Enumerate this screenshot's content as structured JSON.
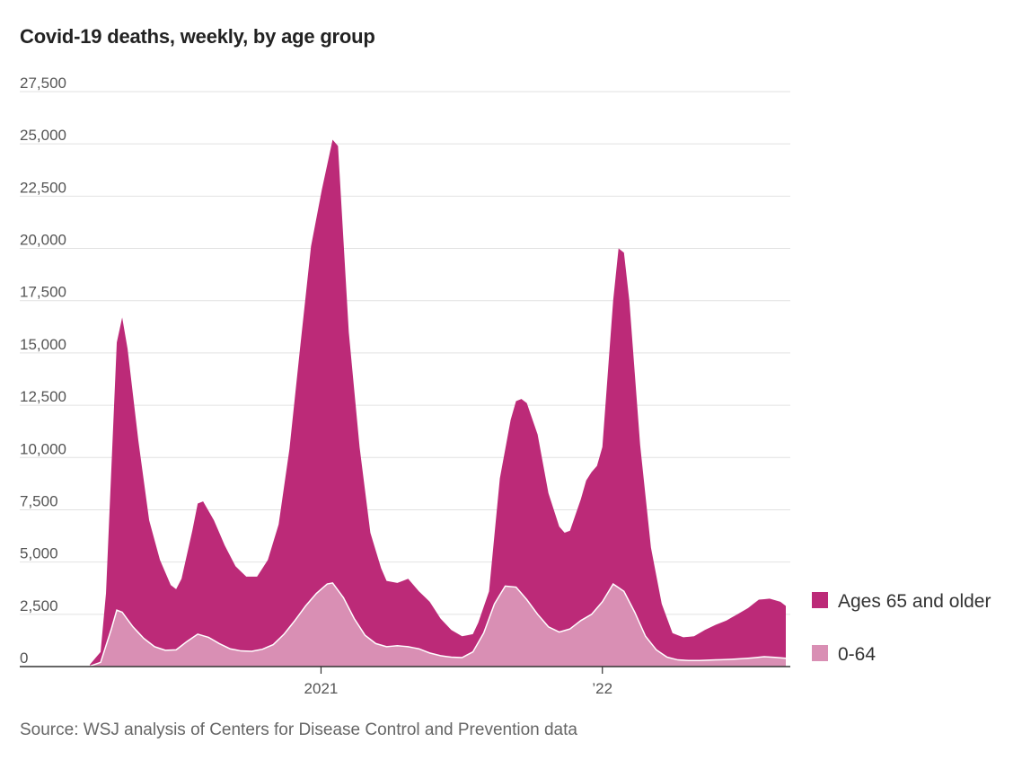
{
  "chart_title": "Covid-19 deaths, weekly, by age group",
  "source": "Source: WSJ analysis of Centers for Disease Control and Prevention data",
  "colors": {
    "older": "#bc2a78",
    "younger": "#d98fb4",
    "grid": "#e2e2e2",
    "axis": "#333333"
  },
  "chart_data": {
    "type": "area",
    "stacked": true,
    "x_unit": "week",
    "x_start": "2020-03-07",
    "x_end": "2022-08-27",
    "ylim": [
      0,
      27500
    ],
    "yticks": [
      "27,500",
      "25,000",
      "22,500",
      "20,000",
      "17,500",
      "15,000",
      "12,500",
      "10,000",
      "7,500",
      "5,000",
      "2,500",
      "0"
    ],
    "ytick_values": [
      27500,
      25000,
      22500,
      20000,
      17500,
      15000,
      12500,
      10000,
      7500,
      5000,
      2500,
      0
    ],
    "xticks": [
      {
        "label": "2021",
        "date": "2021-01-01"
      },
      {
        "label": "’22",
        "date": "2022-01-01"
      }
    ],
    "legend_position": "right",
    "series": [
      {
        "name": "0-64",
        "points": [
          [
            "2020-03-07",
            20
          ],
          [
            "2020-03-21",
            200
          ],
          [
            "2020-04-04",
            1800
          ],
          [
            "2020-04-11",
            2700
          ],
          [
            "2020-04-18",
            2600
          ],
          [
            "2020-05-02",
            1900
          ],
          [
            "2020-05-16",
            1350
          ],
          [
            "2020-05-30",
            950
          ],
          [
            "2020-06-13",
            780
          ],
          [
            "2020-06-27",
            800
          ],
          [
            "2020-07-11",
            1200
          ],
          [
            "2020-07-25",
            1550
          ],
          [
            "2020-08-08",
            1400
          ],
          [
            "2020-08-22",
            1100
          ],
          [
            "2020-09-05",
            850
          ],
          [
            "2020-09-19",
            750
          ],
          [
            "2020-10-03",
            730
          ],
          [
            "2020-10-17",
            830
          ],
          [
            "2020-10-31",
            1050
          ],
          [
            "2020-11-14",
            1550
          ],
          [
            "2020-11-28",
            2200
          ],
          [
            "2020-12-12",
            2900
          ],
          [
            "2020-12-26",
            3500
          ],
          [
            "2021-01-09",
            3950
          ],
          [
            "2021-01-16",
            4000
          ],
          [
            "2021-01-30",
            3300
          ],
          [
            "2021-02-13",
            2300
          ],
          [
            "2021-02-27",
            1500
          ],
          [
            "2021-03-13",
            1100
          ],
          [
            "2021-03-27",
            950
          ],
          [
            "2021-04-10",
            1000
          ],
          [
            "2021-04-24",
            950
          ],
          [
            "2021-05-08",
            850
          ],
          [
            "2021-05-22",
            650
          ],
          [
            "2021-06-05",
            520
          ],
          [
            "2021-06-19",
            450
          ],
          [
            "2021-07-03",
            430
          ],
          [
            "2021-07-17",
            700
          ],
          [
            "2021-07-31",
            1600
          ],
          [
            "2021-08-14",
            3000
          ],
          [
            "2021-08-28",
            3850
          ],
          [
            "2021-09-11",
            3800
          ],
          [
            "2021-09-25",
            3200
          ],
          [
            "2021-10-09",
            2500
          ],
          [
            "2021-10-23",
            1900
          ],
          [
            "2021-11-06",
            1650
          ],
          [
            "2021-11-20",
            1800
          ],
          [
            "2021-12-04",
            2200
          ],
          [
            "2021-12-18",
            2500
          ],
          [
            "2022-01-01",
            3100
          ],
          [
            "2022-01-15",
            3950
          ],
          [
            "2022-01-29",
            3600
          ],
          [
            "2022-02-12",
            2600
          ],
          [
            "2022-02-26",
            1450
          ],
          [
            "2022-03-12",
            800
          ],
          [
            "2022-03-26",
            450
          ],
          [
            "2022-04-09",
            320
          ],
          [
            "2022-04-23",
            290
          ],
          [
            "2022-05-07",
            290
          ],
          [
            "2022-05-21",
            310
          ],
          [
            "2022-06-04",
            330
          ],
          [
            "2022-06-18",
            350
          ],
          [
            "2022-07-02",
            380
          ],
          [
            "2022-07-16",
            420
          ],
          [
            "2022-07-30",
            470
          ],
          [
            "2022-08-13",
            440
          ],
          [
            "2022-08-27",
            400
          ]
        ]
      },
      {
        "name": "Ages 65 and older",
        "points": [
          [
            "2020-03-07",
            90
          ],
          [
            "2020-03-21",
            700
          ],
          [
            "2020-03-28",
            3500
          ],
          [
            "2020-04-04",
            9500
          ],
          [
            "2020-04-11",
            15500
          ],
          [
            "2020-04-18",
            16700
          ],
          [
            "2020-04-25",
            15200
          ],
          [
            "2020-05-09",
            10800
          ],
          [
            "2020-05-23",
            7000
          ],
          [
            "2020-06-06",
            5100
          ],
          [
            "2020-06-20",
            3900
          ],
          [
            "2020-06-27",
            3700
          ],
          [
            "2020-07-04",
            4200
          ],
          [
            "2020-07-18",
            6500
          ],
          [
            "2020-07-25",
            7800
          ],
          [
            "2020-08-01",
            7900
          ],
          [
            "2020-08-15",
            7000
          ],
          [
            "2020-08-29",
            5800
          ],
          [
            "2020-09-12",
            4800
          ],
          [
            "2020-09-26",
            4300
          ],
          [
            "2020-10-10",
            4300
          ],
          [
            "2020-10-24",
            5100
          ],
          [
            "2020-11-07",
            6800
          ],
          [
            "2020-11-21",
            10400
          ],
          [
            "2020-12-05",
            15300
          ],
          [
            "2020-12-19",
            20100
          ],
          [
            "2021-01-02",
            22800
          ],
          [
            "2021-01-09",
            24000
          ],
          [
            "2021-01-16",
            25200
          ],
          [
            "2021-01-23",
            24900
          ],
          [
            "2021-02-06",
            16000
          ],
          [
            "2021-02-20",
            10500
          ],
          [
            "2021-03-06",
            6400
          ],
          [
            "2021-03-20",
            4700
          ],
          [
            "2021-03-27",
            4100
          ],
          [
            "2021-04-10",
            4000
          ],
          [
            "2021-04-24",
            4200
          ],
          [
            "2021-05-08",
            3600
          ],
          [
            "2021-05-22",
            3100
          ],
          [
            "2021-06-05",
            2300
          ],
          [
            "2021-06-19",
            1750
          ],
          [
            "2021-07-03",
            1450
          ],
          [
            "2021-07-17",
            1550
          ],
          [
            "2021-07-24",
            2100
          ],
          [
            "2021-08-07",
            3600
          ],
          [
            "2021-08-21",
            9000
          ],
          [
            "2021-09-04",
            11800
          ],
          [
            "2021-09-11",
            12700
          ],
          [
            "2021-09-18",
            12800
          ],
          [
            "2021-09-25",
            12600
          ],
          [
            "2021-10-09",
            11100
          ],
          [
            "2021-10-23",
            8300
          ],
          [
            "2021-11-06",
            6700
          ],
          [
            "2021-11-13",
            6400
          ],
          [
            "2021-11-20",
            6500
          ],
          [
            "2021-12-04",
            8000
          ],
          [
            "2021-12-11",
            8900
          ],
          [
            "2021-12-18",
            9300
          ],
          [
            "2021-12-25",
            9600
          ],
          [
            "2022-01-01",
            10500
          ],
          [
            "2022-01-15",
            17500
          ],
          [
            "2022-01-22",
            20000
          ],
          [
            "2022-01-29",
            19800
          ],
          [
            "2022-02-05",
            17500
          ],
          [
            "2022-02-19",
            10600
          ],
          [
            "2022-03-05",
            5700
          ],
          [
            "2022-03-19",
            3000
          ],
          [
            "2022-04-02",
            1600
          ],
          [
            "2022-04-16",
            1400
          ],
          [
            "2022-04-30",
            1450
          ],
          [
            "2022-05-14",
            1750
          ],
          [
            "2022-05-28",
            2000
          ],
          [
            "2022-06-11",
            2200
          ],
          [
            "2022-06-25",
            2500
          ],
          [
            "2022-07-09",
            2800
          ],
          [
            "2022-07-23",
            3200
          ],
          [
            "2022-08-06",
            3250
          ],
          [
            "2022-08-20",
            3100
          ],
          [
            "2022-08-27",
            2900
          ]
        ]
      }
    ]
  }
}
